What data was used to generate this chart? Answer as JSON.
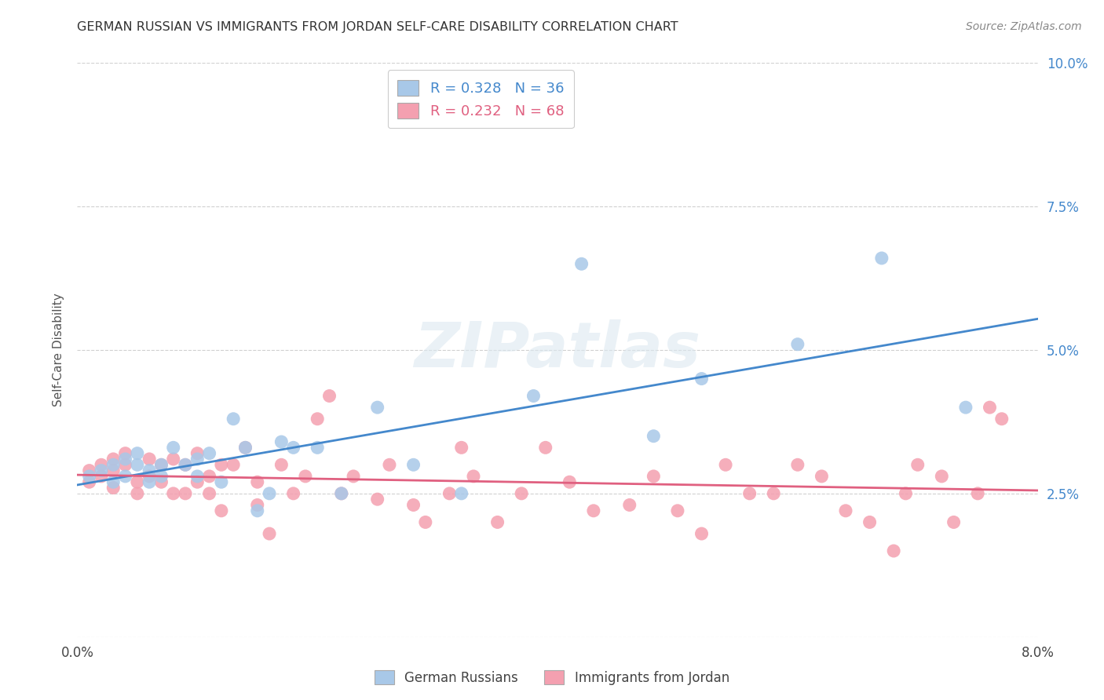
{
  "title": "GERMAN RUSSIAN VS IMMIGRANTS FROM JORDAN SELF-CARE DISABILITY CORRELATION CHART",
  "source": "Source: ZipAtlas.com",
  "ylabel": "Self-Care Disability",
  "xlim": [
    0.0,
    0.08
  ],
  "ylim": [
    0.0,
    0.1
  ],
  "xtick_positions": [
    0.0,
    0.01,
    0.02,
    0.03,
    0.04,
    0.05,
    0.06,
    0.07,
    0.08
  ],
  "xtick_labels": [
    "0.0%",
    "",
    "",
    "",
    "",
    "",
    "",
    "",
    "8.0%"
  ],
  "ytick_positions": [
    0.0,
    0.025,
    0.05,
    0.075,
    0.1
  ],
  "ytick_labels_right": [
    "",
    "2.5%",
    "5.0%",
    "7.5%",
    "10.0%"
  ],
  "legend_blue_r": "R = 0.328",
  "legend_blue_n": "N = 36",
  "legend_pink_r": "R = 0.232",
  "legend_pink_n": "N = 68",
  "legend_label_blue": "German Russians",
  "legend_label_pink": "Immigrants from Jordan",
  "blue_color": "#a8c8e8",
  "pink_color": "#f4a0b0",
  "trend_blue_color": "#4488cc",
  "trend_pink_color": "#e06080",
  "blue_scatter_alpha": 0.85,
  "pink_scatter_alpha": 0.85,
  "blue_x": [
    0.001,
    0.002,
    0.003,
    0.003,
    0.004,
    0.004,
    0.005,
    0.005,
    0.006,
    0.006,
    0.007,
    0.007,
    0.008,
    0.009,
    0.01,
    0.01,
    0.011,
    0.012,
    0.013,
    0.014,
    0.015,
    0.016,
    0.017,
    0.018,
    0.02,
    0.022,
    0.025,
    0.028,
    0.032,
    0.038,
    0.042,
    0.048,
    0.052,
    0.06,
    0.067,
    0.074
  ],
  "blue_y": [
    0.028,
    0.029,
    0.027,
    0.03,
    0.028,
    0.031,
    0.03,
    0.032,
    0.027,
    0.029,
    0.03,
    0.028,
    0.033,
    0.03,
    0.031,
    0.028,
    0.032,
    0.027,
    0.038,
    0.033,
    0.022,
    0.025,
    0.034,
    0.033,
    0.033,
    0.025,
    0.04,
    0.03,
    0.025,
    0.042,
    0.065,
    0.035,
    0.045,
    0.051,
    0.066,
    0.04
  ],
  "pink_x": [
    0.001,
    0.001,
    0.002,
    0.002,
    0.003,
    0.003,
    0.003,
    0.004,
    0.004,
    0.005,
    0.005,
    0.006,
    0.006,
    0.007,
    0.007,
    0.008,
    0.008,
    0.009,
    0.009,
    0.01,
    0.01,
    0.011,
    0.011,
    0.012,
    0.012,
    0.013,
    0.014,
    0.015,
    0.015,
    0.016,
    0.017,
    0.018,
    0.019,
    0.02,
    0.021,
    0.022,
    0.023,
    0.025,
    0.026,
    0.028,
    0.029,
    0.031,
    0.032,
    0.033,
    0.035,
    0.037,
    0.039,
    0.041,
    0.043,
    0.046,
    0.048,
    0.05,
    0.052,
    0.054,
    0.056,
    0.058,
    0.06,
    0.062,
    0.064,
    0.066,
    0.068,
    0.069,
    0.07,
    0.072,
    0.073,
    0.075,
    0.076,
    0.077
  ],
  "pink_y": [
    0.027,
    0.029,
    0.028,
    0.03,
    0.026,
    0.029,
    0.031,
    0.03,
    0.032,
    0.027,
    0.025,
    0.028,
    0.031,
    0.03,
    0.027,
    0.025,
    0.031,
    0.03,
    0.025,
    0.027,
    0.032,
    0.025,
    0.028,
    0.022,
    0.03,
    0.03,
    0.033,
    0.027,
    0.023,
    0.018,
    0.03,
    0.025,
    0.028,
    0.038,
    0.042,
    0.025,
    0.028,
    0.024,
    0.03,
    0.023,
    0.02,
    0.025,
    0.033,
    0.028,
    0.02,
    0.025,
    0.033,
    0.027,
    0.022,
    0.023,
    0.028,
    0.022,
    0.018,
    0.03,
    0.025,
    0.025,
    0.03,
    0.028,
    0.022,
    0.02,
    0.015,
    0.025,
    0.03,
    0.028,
    0.02,
    0.025,
    0.04,
    0.038
  ],
  "watermark": "ZIPatlas",
  "background_color": "#ffffff",
  "grid_color": "#d0d0d0"
}
